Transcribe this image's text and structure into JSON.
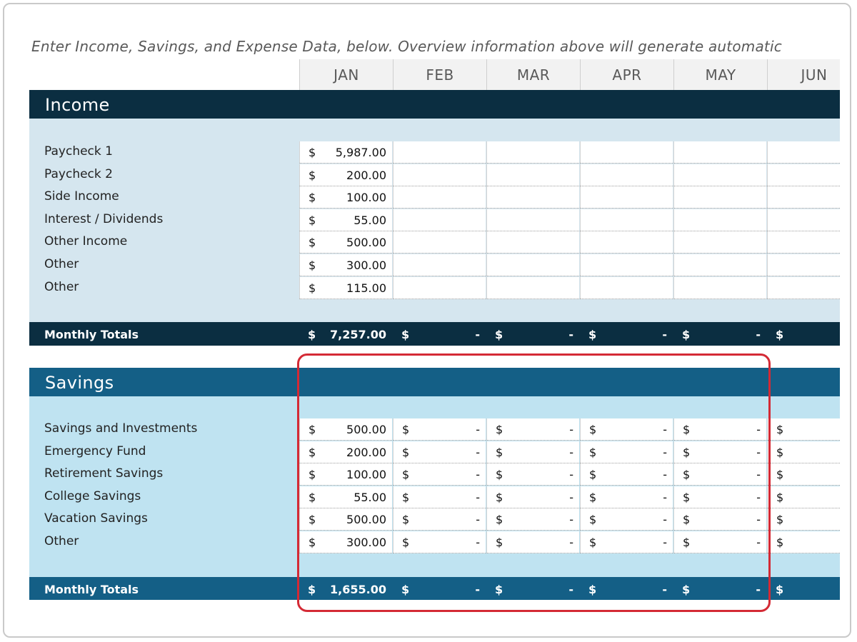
{
  "instruction": "Enter Income, Savings, and Expense Data, below.  Overview information above will generate automatic",
  "months": [
    "JAN",
    "FEB",
    "MAR",
    "APR",
    "MAY",
    "JUN"
  ],
  "income": {
    "title": "Income",
    "rows": [
      {
        "label": "Paycheck 1",
        "jan": "5,987.00"
      },
      {
        "label": "Paycheck 2",
        "jan": "200.00"
      },
      {
        "label": "Side Income",
        "jan": "100.00"
      },
      {
        "label": "Interest / Dividends",
        "jan": "55.00"
      },
      {
        "label": "Other Income",
        "jan": "500.00"
      },
      {
        "label": "Other",
        "jan": "300.00"
      },
      {
        "label": "Other",
        "jan": "115.00"
      }
    ],
    "totals_label": "Monthly Totals",
    "totals": [
      "7,257.00",
      "-",
      "-",
      "-",
      "-",
      "-"
    ]
  },
  "savings": {
    "title": "Savings",
    "rows": [
      {
        "label": "Savings and Investments",
        "jan": "500.00"
      },
      {
        "label": "Emergency Fund",
        "jan": "200.00"
      },
      {
        "label": "Retirement Savings",
        "jan": "100.00"
      },
      {
        "label": "College Savings",
        "jan": "55.00"
      },
      {
        "label": "Vacation Savings",
        "jan": "500.00"
      },
      {
        "label": "Other",
        "jan": "300.00"
      }
    ],
    "other_months_value": "-",
    "totals_label": "Monthly Totals",
    "totals": [
      "1,655.00",
      "-",
      "-",
      "-",
      "-",
      "-"
    ]
  },
  "currency_symbol": "$",
  "colors": {
    "income_header": "#0b2e41",
    "income_body": "#d5e6ef",
    "savings_header": "#145f86",
    "savings_body": "#bfe3f1",
    "highlight": "#d42a35"
  }
}
